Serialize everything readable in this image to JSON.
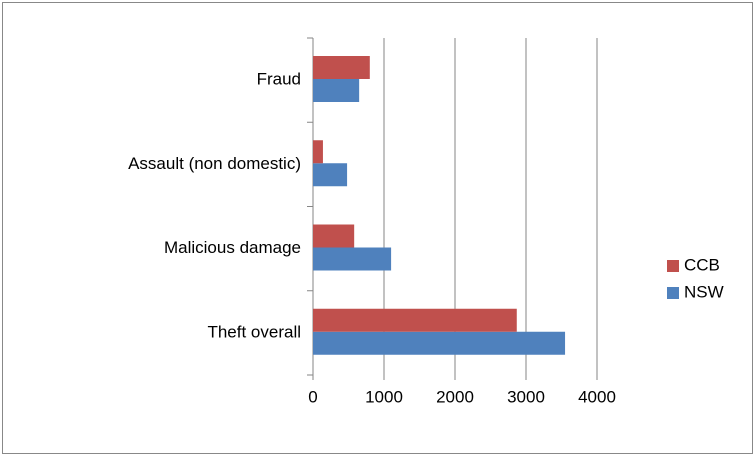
{
  "chart_data": {
    "type": "bar",
    "orientation": "horizontal",
    "categories": [
      "Theft overall",
      "Malicious damage",
      "Assault (non domestic)",
      "Fraud"
    ],
    "series": [
      {
        "name": "NSW",
        "color": "#4f81bd",
        "values": [
          3550,
          1100,
          480,
          650
        ]
      },
      {
        "name": "CCB",
        "color": "#c0504d",
        "values": [
          2870,
          580,
          140,
          800
        ]
      }
    ],
    "xlim": [
      0,
      4000
    ],
    "xticks": [
      0,
      1000,
      2000,
      3000,
      4000
    ],
    "grid": true,
    "legend": "right"
  }
}
